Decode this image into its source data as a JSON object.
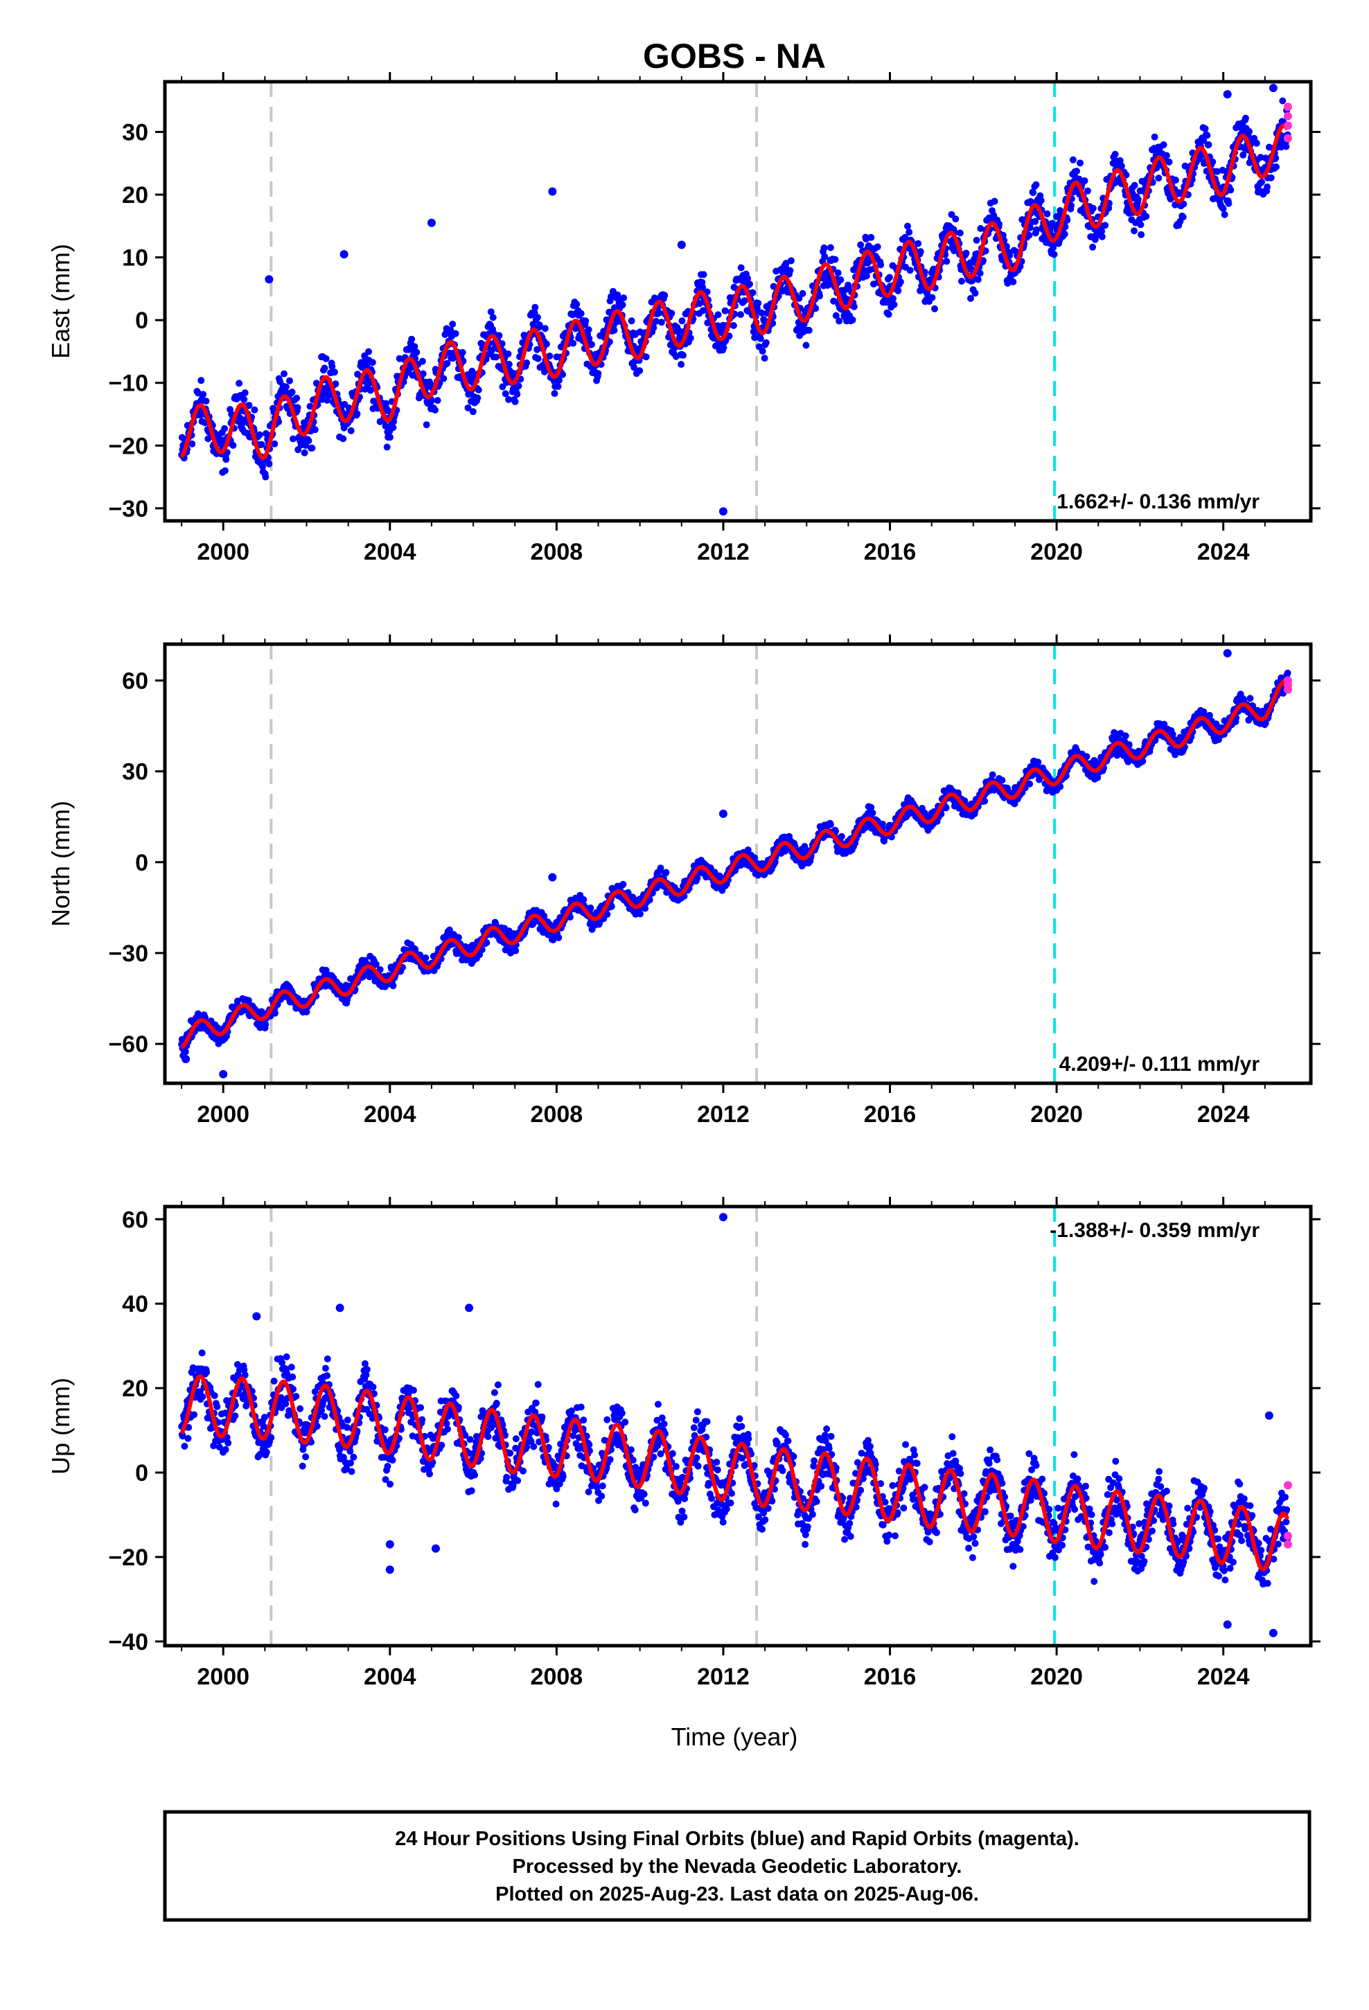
{
  "chart_data": {
    "type": "scatter",
    "title": "GOBS - NA",
    "xlabel": "Time (year)",
    "x_ticks": [
      "2000",
      "2004",
      "2008",
      "2012",
      "2016",
      "2020",
      "2024"
    ],
    "xlim": [
      1998.6,
      2026.1
    ],
    "event_lines": [
      {
        "x": 2001.15,
        "color": "#c8c8c8"
      },
      {
        "x": 2012.8,
        "color": "#c8c8c8"
      },
      {
        "x": 2019.95,
        "color": "#00e5e5"
      }
    ],
    "colors": {
      "final_orbits": "#0000ff",
      "rapid_orbits": "#ff33cc",
      "model_fit": "#ff0000"
    },
    "series": [
      {
        "ylabel": "East (mm)",
        "ylim": [
          -32,
          38
        ],
        "y_ticks": [
          "30",
          "20",
          "10",
          "0",
          "−10",
          "−20",
          "−30"
        ],
        "rate_text": "1.662+/- 0.136 mm/yr",
        "model_points": [
          [
            1999.0,
            -18
          ],
          [
            2000.0,
            -17
          ],
          [
            2001.0,
            -18
          ],
          [
            2002.0,
            -14
          ],
          [
            2003.0,
            -12
          ],
          [
            2004.0,
            -12
          ],
          [
            2005.0,
            -8
          ],
          [
            2006.0,
            -7
          ],
          [
            2007.0,
            -6
          ],
          [
            2008.0,
            -5
          ],
          [
            2009.0,
            -3
          ],
          [
            2010.0,
            -2
          ],
          [
            2011.0,
            0
          ],
          [
            2012.0,
            1
          ],
          [
            2013.0,
            2
          ],
          [
            2014.0,
            4
          ],
          [
            2015.0,
            6
          ],
          [
            2016.0,
            8
          ],
          [
            2017.0,
            9
          ],
          [
            2018.0,
            11
          ],
          [
            2019.0,
            12
          ],
          [
            2020.0,
            17
          ],
          [
            2021.0,
            19
          ],
          [
            2022.0,
            21
          ],
          [
            2023.0,
            23
          ],
          [
            2024.0,
            24
          ],
          [
            2025.0,
            27
          ],
          [
            2025.6,
            27
          ]
        ],
        "seasonal_amplitude": 4,
        "outliers": [
          [
            2001.1,
            6.5
          ],
          [
            2002.9,
            10.5
          ],
          [
            2005.0,
            15.5
          ],
          [
            2007.9,
            20.5
          ],
          [
            2011.0,
            12
          ],
          [
            2012.0,
            -30.5
          ],
          [
            2024.1,
            36
          ],
          [
            2025.2,
            37
          ]
        ],
        "rapid_points": [
          [
            2025.55,
            34
          ],
          [
            2025.55,
            32.5
          ],
          [
            2025.55,
            31
          ],
          [
            2025.55,
            29
          ]
        ]
      },
      {
        "ylabel": "North (mm)",
        "ylim": [
          -73,
          72
        ],
        "y_ticks": [
          "60",
          "30",
          "0",
          "−30",
          "−60"
        ],
        "rate_text": "4.209+/- 0.111 mm/yr",
        "model_points": [
          [
            1999.0,
            -58
          ],
          [
            2001.0,
            -48
          ],
          [
            2003.0,
            -40
          ],
          [
            2005.0,
            -31
          ],
          [
            2007.0,
            -23
          ],
          [
            2009.0,
            -15
          ],
          [
            2011.0,
            -7
          ],
          [
            2013.0,
            1
          ],
          [
            2015.0,
            9
          ],
          [
            2017.0,
            17
          ],
          [
            2019.0,
            25
          ],
          [
            2021.0,
            34
          ],
          [
            2023.0,
            42
          ],
          [
            2025.0,
            51
          ],
          [
            2025.6,
            58
          ]
        ],
        "seasonal_amplitude": 3.5,
        "outliers": [
          [
            1999.1,
            -65
          ],
          [
            2000.0,
            -70
          ],
          [
            2007.9,
            -5
          ],
          [
            2012.0,
            16
          ],
          [
            2024.1,
            69
          ]
        ],
        "rapid_points": [
          [
            2025.55,
            60
          ],
          [
            2025.55,
            58.5
          ],
          [
            2025.55,
            57
          ]
        ]
      },
      {
        "ylabel": "Up (mm)",
        "ylim": [
          -41,
          63
        ],
        "y_ticks": [
          "60",
          "40",
          "20",
          "0",
          "−20",
          "−40"
        ],
        "rate_text": "-1.388+/- 0.359 mm/yr",
        "model_points": [
          [
            1999.0,
            16
          ],
          [
            2001.0,
            15
          ],
          [
            2003.0,
            13
          ],
          [
            2005.0,
            10
          ],
          [
            2007.0,
            7
          ],
          [
            2009.0,
            5
          ],
          [
            2011.0,
            2
          ],
          [
            2013.0,
            -1
          ],
          [
            2015.0,
            -3
          ],
          [
            2017.0,
            -6
          ],
          [
            2019.0,
            -8
          ],
          [
            2021.0,
            -11
          ],
          [
            2023.0,
            -13
          ],
          [
            2025.0,
            -16
          ],
          [
            2025.6,
            -17
          ]
        ],
        "seasonal_amplitude": 7,
        "outliers": [
          [
            2000.8,
            37
          ],
          [
            2002.8,
            39
          ],
          [
            2004.0,
            -23
          ],
          [
            2004.0,
            -17
          ],
          [
            2005.1,
            -18
          ],
          [
            2005.9,
            39
          ],
          [
            2012.0,
            60.5
          ],
          [
            2024.1,
            -36
          ],
          [
            2025.1,
            13.5
          ],
          [
            2025.2,
            -38
          ]
        ],
        "rapid_points": [
          [
            2025.55,
            -3
          ],
          [
            2025.55,
            -15
          ],
          [
            2025.55,
            -17
          ]
        ]
      }
    ]
  },
  "footer": {
    "line1": "24 Hour Positions Using Final Orbits (blue) and Rapid Orbits (magenta).",
    "line2": "Processed by the Nevada Geodetic Laboratory.",
    "line3": "Plotted on 2025-Aug-23. Last data on 2025-Aug-06."
  }
}
